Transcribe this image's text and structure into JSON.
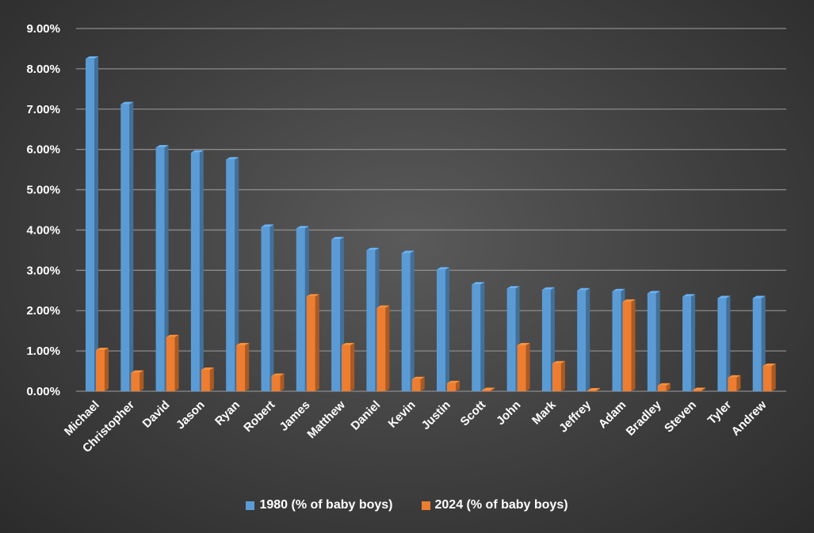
{
  "chart_data": {
    "type": "bar",
    "categories": [
      "Michael",
      "Christopher",
      "David",
      "Jason",
      "Ryan",
      "Robert",
      "James",
      "Matthew",
      "Daniel",
      "Kevin",
      "Justin",
      "Scott",
      "John",
      "Mark",
      "Jeffrey",
      "Adam",
      "Bradley",
      "Steven",
      "Tyler",
      "Andrew"
    ],
    "series": [
      {
        "name": "1980 (% of baby boys)",
        "color": "#5b9bd5",
        "values": [
          8.25,
          7.12,
          6.05,
          5.92,
          5.75,
          4.08,
          4.04,
          3.77,
          3.5,
          3.43,
          3.02,
          2.65,
          2.55,
          2.52,
          2.5,
          2.48,
          2.43,
          2.35,
          2.31,
          2.31
        ]
      },
      {
        "name": "2024 (% of baby boys)",
        "color": "#ed7d31",
        "values": [
          1.02,
          0.46,
          1.34,
          0.53,
          1.14,
          0.38,
          2.35,
          1.14,
          2.07,
          0.3,
          0.2,
          0.03,
          1.14,
          0.69,
          0.02,
          2.22,
          0.14,
          0.03,
          0.34,
          0.63
        ]
      }
    ],
    "ylim": [
      0,
      9
    ],
    "yticks": [
      "0.00%",
      "1.00%",
      "2.00%",
      "3.00%",
      "4.00%",
      "5.00%",
      "6.00%",
      "7.00%",
      "8.00%",
      "9.00%"
    ],
    "grid": true,
    "legend_position": "bottom"
  }
}
